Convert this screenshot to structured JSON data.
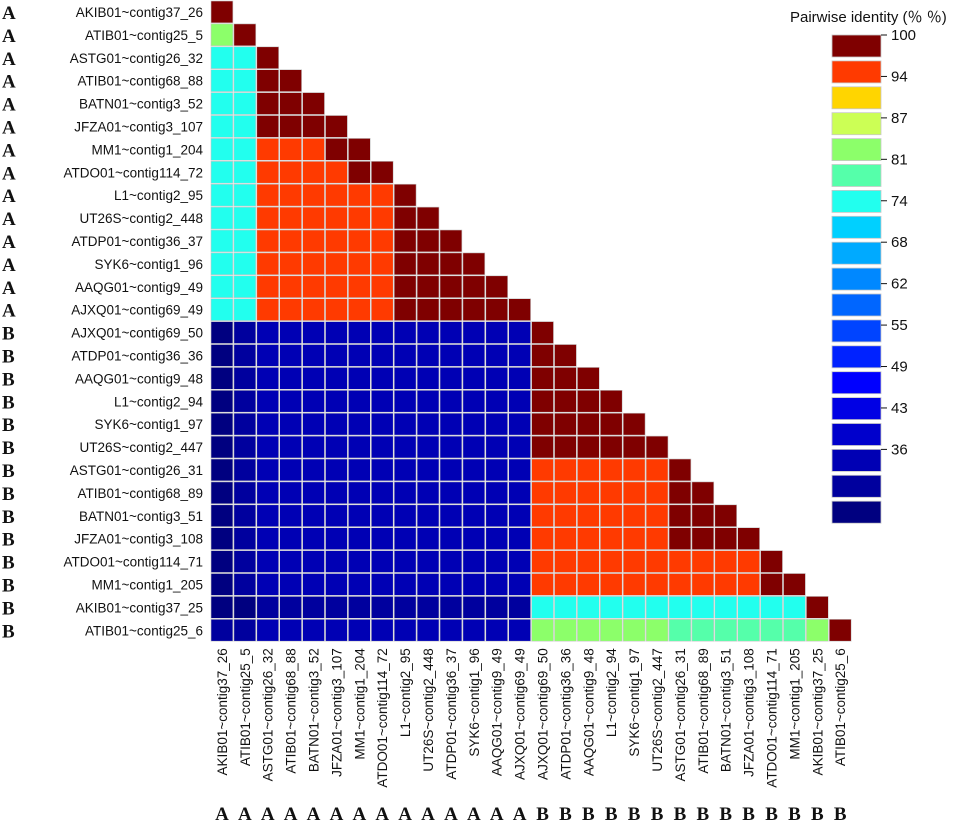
{
  "chart_data": {
    "type": "heatmap",
    "title": "",
    "labels": [
      "AKIB01~contig37_26",
      "ATIB01~contig25_5",
      "ASTG01~contig26_32",
      "ATIB01~contig68_88",
      "BATN01~contig3_52",
      "JFZA01~contig3_107",
      "MM1~contig1_204",
      "ATDO01~contig114_72",
      "L1~contig2_95",
      "UT26S~contig2_448",
      "ATDP01~contig36_37",
      "SYK6~contig1_96",
      "AAQG01~contig9_49",
      "AJXQ01~contig69_49",
      "AJXQ01~contig69_50",
      "ATDP01~contig36_36",
      "AAQG01~contig9_48",
      "L1~contig2_94",
      "SYK6~contig1_97",
      "UT26S~contig2_447",
      "ASTG01~contig26_31",
      "ATIB01~contig68_89",
      "BATN01~contig3_51",
      "JFZA01~contig3_108",
      "ATDO01~contig114_71",
      "MM1~contig1_205",
      "AKIB01~contig37_25",
      "ATIB01~contig25_6"
    ],
    "groups": [
      "A",
      "A",
      "A",
      "A",
      "A",
      "A",
      "A",
      "A",
      "A",
      "A",
      "A",
      "A",
      "A",
      "A",
      "B",
      "B",
      "B",
      "B",
      "B",
      "B",
      "B",
      "B",
      "B",
      "B",
      "B",
      "B",
      "B",
      "B"
    ],
    "x_groups": [
      "A",
      "A",
      "A",
      "A",
      "A",
      "A",
      "A",
      "A",
      "A",
      "A",
      "A",
      "A",
      "A",
      "A",
      "B",
      "B",
      "B",
      "B",
      "B",
      "B",
      "B",
      "B",
      "B",
      "B",
      "B",
      "B",
      "B",
      "B"
    ],
    "matrix_lower": [
      [
        100
      ],
      [
        88,
        100
      ],
      [
        81,
        83,
        100
      ],
      [
        81,
        83,
        99,
        100
      ],
      [
        81,
        83,
        99,
        99,
        100
      ],
      [
        81,
        83,
        98,
        98,
        99,
        100
      ],
      [
        81,
        83,
        97,
        97,
        97,
        98,
        100
      ],
      [
        81,
        83,
        97,
        97,
        97,
        97,
        98,
        100
      ],
      [
        81,
        83,
        96,
        96,
        96,
        96,
        96,
        96,
        100
      ],
      [
        81,
        83,
        96,
        96,
        96,
        96,
        96,
        96,
        99,
        100
      ],
      [
        81,
        83,
        96,
        96,
        96,
        96,
        96,
        96,
        99,
        99,
        100
      ],
      [
        81,
        83,
        96,
        96,
        96,
        96,
        96,
        96,
        99,
        99,
        99,
        100
      ],
      [
        81,
        83,
        96,
        96,
        96,
        96,
        96,
        96,
        99,
        99,
        99,
        99,
        100
      ],
      [
        81,
        83,
        96,
        96,
        96,
        96,
        96,
        96,
        99,
        99,
        99,
        99,
        99,
        100
      ],
      [
        38,
        39,
        42,
        42,
        42,
        42,
        42,
        42,
        42,
        42,
        42,
        42,
        42,
        42,
        100
      ],
      [
        38,
        39,
        42,
        42,
        42,
        42,
        42,
        42,
        42,
        42,
        42,
        42,
        42,
        42,
        99,
        100
      ],
      [
        38,
        39,
        42,
        42,
        42,
        42,
        42,
        42,
        42,
        42,
        42,
        42,
        42,
        42,
        99,
        99,
        100
      ],
      [
        38,
        39,
        42,
        42,
        42,
        42,
        42,
        42,
        42,
        42,
        42,
        42,
        42,
        42,
        99,
        99,
        99,
        100
      ],
      [
        38,
        39,
        42,
        42,
        42,
        42,
        42,
        42,
        42,
        42,
        42,
        42,
        42,
        42,
        99,
        99,
        99,
        99,
        100
      ],
      [
        38,
        39,
        42,
        42,
        42,
        42,
        42,
        42,
        42,
        42,
        42,
        42,
        42,
        42,
        99,
        99,
        99,
        99,
        99,
        100
      ],
      [
        37,
        39,
        42,
        42,
        42,
        42,
        42,
        42,
        42,
        42,
        42,
        42,
        42,
        42,
        96,
        96,
        96,
        96,
        96,
        96,
        100
      ],
      [
        37,
        39,
        42,
        42,
        42,
        42,
        42,
        42,
        42,
        42,
        42,
        42,
        42,
        42,
        96,
        96,
        96,
        96,
        96,
        96,
        99,
        100
      ],
      [
        37,
        39,
        42,
        42,
        42,
        42,
        42,
        42,
        42,
        42,
        42,
        42,
        42,
        42,
        96,
        96,
        96,
        96,
        96,
        96,
        99,
        99,
        100
      ],
      [
        37,
        39,
        42,
        42,
        42,
        42,
        42,
        42,
        42,
        42,
        42,
        42,
        42,
        42,
        96,
        96,
        96,
        96,
        96,
        96,
        99,
        99,
        99,
        100
      ],
      [
        37,
        39,
        42,
        42,
        42,
        42,
        42,
        42,
        42,
        42,
        42,
        42,
        42,
        42,
        96,
        96,
        96,
        96,
        96,
        96,
        97,
        97,
        97,
        97,
        100
      ],
      [
        37,
        39,
        42,
        42,
        42,
        42,
        42,
        42,
        42,
        42,
        42,
        42,
        42,
        42,
        96,
        96,
        96,
        96,
        96,
        96,
        97,
        97,
        97,
        97,
        98,
        100
      ],
      [
        37,
        38,
        40,
        40,
        40,
        40,
        40,
        40,
        40,
        40,
        40,
        40,
        40,
        40,
        82,
        82,
        82,
        82,
        82,
        82,
        83,
        83,
        83,
        83,
        83,
        83,
        100
      ],
      [
        39,
        40,
        41,
        41,
        41,
        41,
        41,
        41,
        41,
        41,
        41,
        41,
        41,
        41,
        88,
        88,
        88,
        88,
        88,
        88,
        84,
        84,
        84,
        84,
        84,
        84,
        88,
        100
      ]
    ],
    "legend": {
      "title": "Pairwise identity (％ ％)",
      "ticks": [
        100,
        94,
        87,
        81,
        74,
        68,
        62,
        55,
        49,
        43,
        36
      ],
      "bins": [
        {
          "min": 97.5,
          "color": "#7F0000"
        },
        {
          "min": 95.5,
          "color": "#FF3A00"
        },
        {
          "min": 93.0,
          "color": "#FFD500"
        },
        {
          "min": 91.0,
          "color": "#CCFF55"
        },
        {
          "min": 86.5,
          "color": "#8CFF6A"
        },
        {
          "min": 83.5,
          "color": "#55FFAA"
        },
        {
          "min": 80.0,
          "color": "#22FFEE"
        },
        {
          "min": 76.0,
          "color": "#00D0FF"
        },
        {
          "min": 72.0,
          "color": "#00AAFF"
        },
        {
          "min": 68.0,
          "color": "#0088FF"
        },
        {
          "min": 64.0,
          "color": "#0066FF"
        },
        {
          "min": 60.0,
          "color": "#0044FF"
        },
        {
          "min": 55.0,
          "color": "#0022FF"
        },
        {
          "min": 51.0,
          "color": "#0000FF"
        },
        {
          "min": 47.0,
          "color": "#0000E4"
        },
        {
          "min": 43.0,
          "color": "#0000CC"
        },
        {
          "min": 40.5,
          "color": "#0000B4"
        },
        {
          "min": 38.5,
          "color": "#00009E"
        },
        {
          "min": 0,
          "color": "#000080"
        }
      ]
    }
  }
}
